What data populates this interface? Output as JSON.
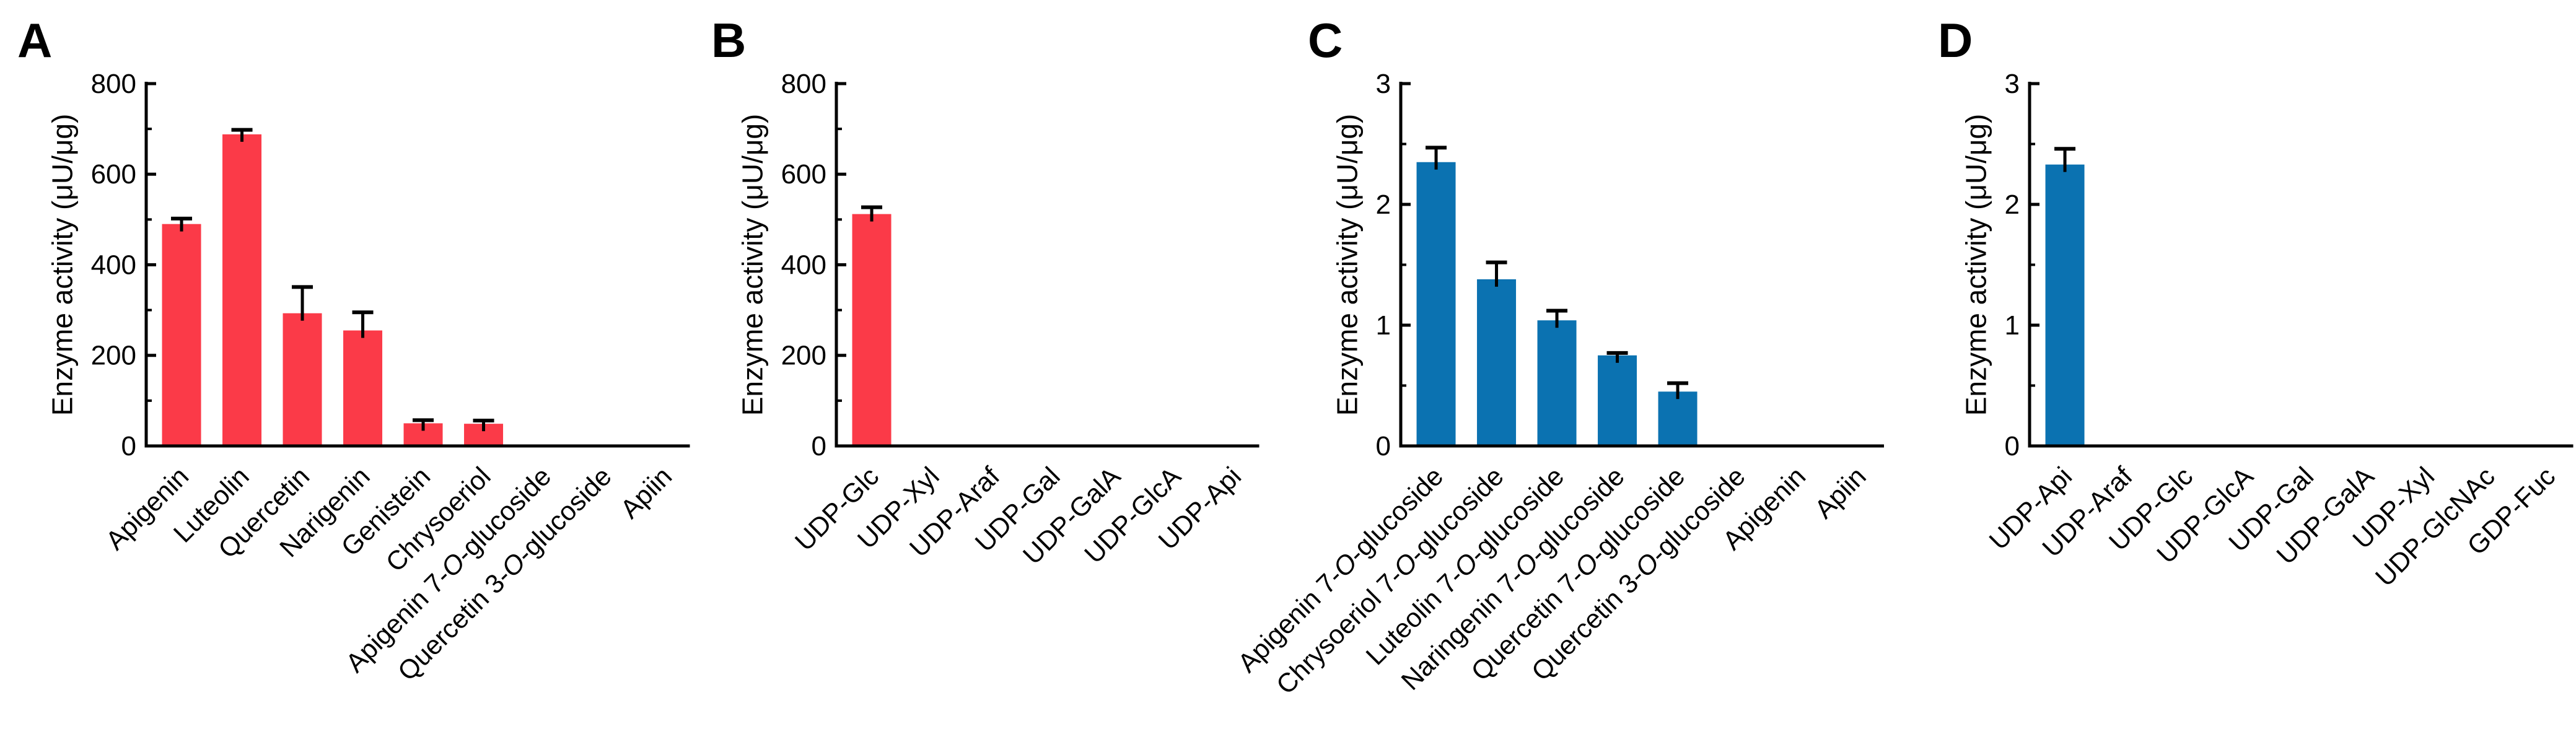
{
  "figure": {
    "background": "#ffffff",
    "axis_color": "#000000",
    "colors": {
      "red": "#FB3A48",
      "blue": "#0B72B1"
    }
  },
  "chart_data": [
    {
      "type": "bar",
      "panel_label": "A",
      "title": "",
      "xlabel": "",
      "ylabel": "Enzyme activity (μU/μg)",
      "ylim": [
        0,
        800
      ],
      "yticks": [
        0,
        200,
        400,
        600,
        800
      ],
      "ytick_labels": [
        "0",
        "200",
        "400",
        "600",
        "800"
      ],
      "minor_tick_step": 100,
      "grid": false,
      "legend": null,
      "bar_color": "#FB3A48",
      "categories": [
        "Apigenin",
        "Luteolin",
        "Quercetin",
        "Narigenin",
        "Genistein",
        "Chrysoeriol",
        "Apigenin 7-O-glucoside",
        "Quercetin 3-O-glucoside",
        "Apiin"
      ],
      "values": [
        490,
        688,
        293,
        255,
        50,
        49,
        0,
        0,
        0
      ],
      "errors": [
        12,
        10,
        58,
        40,
        7,
        7,
        0,
        0,
        0
      ]
    },
    {
      "type": "bar",
      "panel_label": "B",
      "title": "",
      "xlabel": "",
      "ylabel": "Enzyme activity (μU/μg)",
      "ylim": [
        0,
        800
      ],
      "yticks": [
        0,
        200,
        400,
        600,
        800
      ],
      "ytick_labels": [
        "0",
        "200",
        "400",
        "600",
        "800"
      ],
      "minor_tick_step": 100,
      "grid": false,
      "legend": null,
      "bar_color": "#FB3A48",
      "categories": [
        "UDP-Glc",
        "UDP-Xyl",
        "UDP-Araf",
        "UDP-Gal",
        "UDP-GalA",
        "UDP-GlcA",
        "UDP-Api"
      ],
      "values": [
        512,
        0,
        0,
        0,
        0,
        0,
        0
      ],
      "errors": [
        15,
        0,
        0,
        0,
        0,
        0,
        0
      ]
    },
    {
      "type": "bar",
      "panel_label": "C",
      "title": "",
      "xlabel": "",
      "ylabel": "Enzyme activity (μU/μg)",
      "ylim": [
        0,
        3
      ],
      "yticks": [
        0,
        1,
        2,
        3
      ],
      "ytick_labels": [
        "0",
        "1",
        "2",
        "3"
      ],
      "minor_tick_step": 0.5,
      "grid": false,
      "legend": null,
      "bar_color": "#0B72B1",
      "categories": [
        "Apigenin 7-O-glucoside",
        "Chrysoeriol 7-O-glucoside",
        "Luteolin 7-O-glucoside",
        "Naringenin 7-O-glucoside",
        "Quercetin 7-O-glucoside",
        "Quercetin 3-O-glucoside",
        "Apigenin",
        "Apiin"
      ],
      "values": [
        2.35,
        1.38,
        1.04,
        0.75,
        0.45,
        0,
        0,
        0
      ],
      "errors": [
        0.12,
        0.14,
        0.08,
        0.02,
        0.07,
        0,
        0,
        0
      ]
    },
    {
      "type": "bar",
      "panel_label": "D",
      "title": "",
      "xlabel": "",
      "ylabel": "Enzyme activity (μU/μg)",
      "ylim": [
        0,
        3
      ],
      "yticks": [
        0,
        1,
        2,
        3
      ],
      "ytick_labels": [
        "0",
        "1",
        "2",
        "3"
      ],
      "minor_tick_step": 0.5,
      "grid": false,
      "legend": null,
      "bar_color": "#0B72B1",
      "categories": [
        "UDP-Api",
        "UDP-Araf",
        "UDP-Glc",
        "UDP-GlcA",
        "UDP-Gal",
        "UDP-GalA",
        "UDP-Xyl",
        "UDP-GlcNAc",
        "GDP-Fuc"
      ],
      "values": [
        2.33,
        0,
        0,
        0,
        0,
        0,
        0,
        0,
        0
      ],
      "errors": [
        0.13,
        0,
        0,
        0,
        0,
        0,
        0,
        0,
        0
      ]
    }
  ]
}
